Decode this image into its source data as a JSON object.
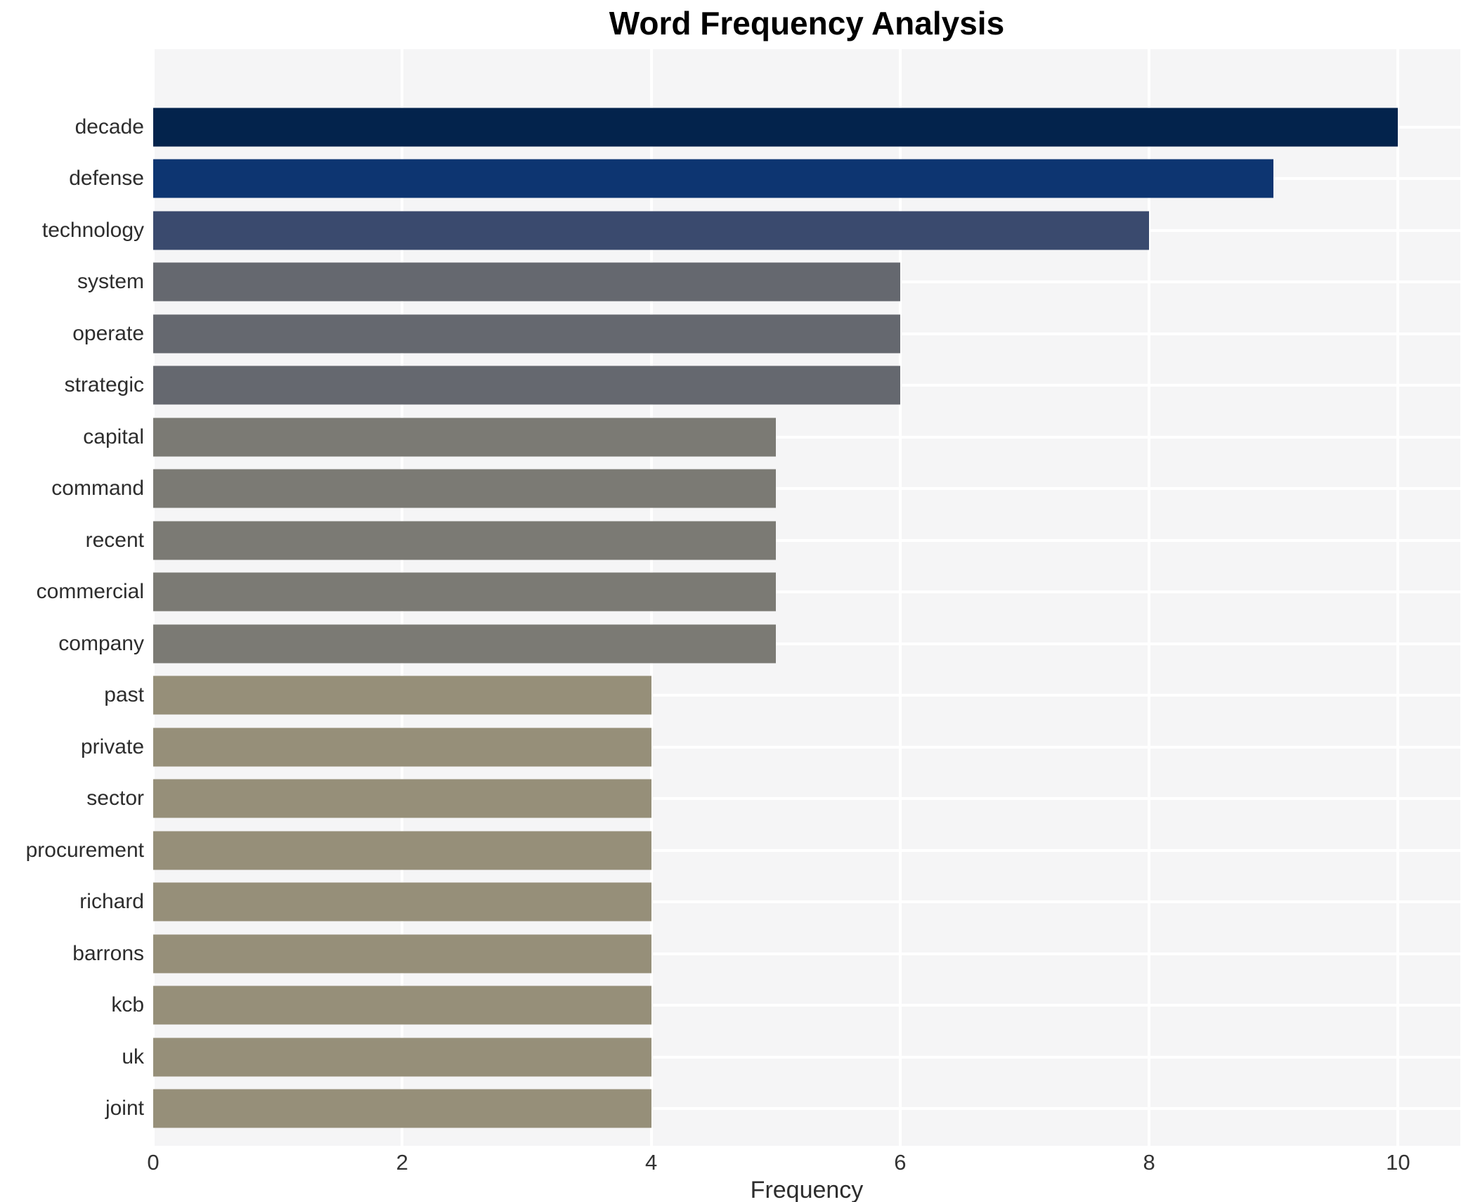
{
  "title": "Word Frequency Analysis",
  "axes": {
    "x_label": "Frequency",
    "x_ticks": [
      0,
      2,
      4,
      6,
      8,
      10
    ],
    "y_axis_type": "categorical"
  },
  "colors": {
    "figure_bg": "#ffffff",
    "panel_bg": "#f5f5f6",
    "gridline": "#ffffff",
    "title_text": "#000000",
    "tick_text": "#333333",
    "label_text": "#2d2d2d"
  },
  "chart_data": {
    "type": "bar",
    "orientation": "horizontal",
    "title": "Word Frequency Analysis",
    "xlabel": "Frequency",
    "ylabel": "",
    "xlim": [
      0,
      10.5
    ],
    "x_ticks": [
      0,
      2,
      4,
      6,
      8,
      10
    ],
    "grid": "white-on-gray, vertical at ticks and horizontal at category centers, drawn under bars",
    "legend": "none",
    "categories": [
      "decade",
      "defense",
      "technology",
      "system",
      "operate",
      "strategic",
      "capital",
      "command",
      "recent",
      "commercial",
      "company",
      "past",
      "private",
      "sector",
      "procurement",
      "richard",
      "barrons",
      "kcb",
      "uk",
      "joint"
    ],
    "values": [
      10,
      9,
      8,
      6,
      6,
      6,
      5,
      5,
      5,
      5,
      5,
      4,
      4,
      4,
      4,
      4,
      4,
      4,
      4,
      4
    ],
    "bar_colors": [
      "#03234c",
      "#0d3571",
      "#3a4a6e",
      "#65686f",
      "#65686f",
      "#65686f",
      "#7b7a74",
      "#7b7a74",
      "#7b7a74",
      "#7b7a74",
      "#7b7a74",
      "#968f79",
      "#968f79",
      "#968f79",
      "#968f79",
      "#968f79",
      "#968f79",
      "#968f79",
      "#968f79",
      "#968f79"
    ]
  }
}
